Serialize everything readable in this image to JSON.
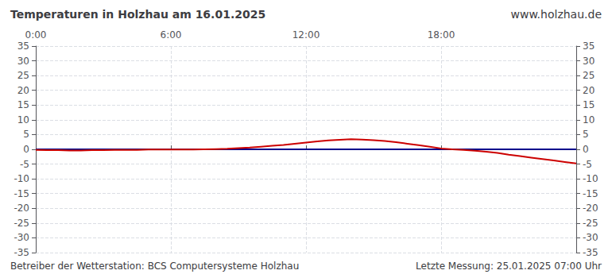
{
  "chart_data": {
    "type": "line",
    "title": "Temperaturen in Holzhau am 16.01.2025",
    "annotations": [
      "www.holzhau.de",
      "Betreiber der Wetterstation: BCS Computersysteme Holzhau",
      "Letzte Messung: 25.01.2025 07:00 Uhr"
    ],
    "xlim": [
      0,
      1440
    ],
    "xticks": [
      {
        "value": 0,
        "label": "0:00"
      },
      {
        "value": 360,
        "label": "6:00"
      },
      {
        "value": 720,
        "label": "12:00"
      },
      {
        "value": 1080,
        "label": "18:00"
      },
      {
        "value": 1440,
        "label": null
      }
    ],
    "ylim": [
      -35,
      35
    ],
    "yticks": [
      -35,
      -30,
      -25,
      -20,
      -15,
      -10,
      -5,
      0,
      5,
      10,
      15,
      20,
      25,
      30,
      35
    ],
    "y2lim": [
      -35,
      35
    ],
    "y2ticks": [
      -35,
      -30,
      -25,
      -20,
      -15,
      -10,
      -5,
      0,
      5,
      10,
      15,
      20,
      25,
      30,
      35
    ],
    "grid": true,
    "series": [
      {
        "color": "#00008b",
        "x": [
          0,
          1440
        ],
        "values": [
          0.0,
          0.0
        ]
      },
      {
        "color": "#cc0000",
        "x": [
          0,
          30,
          60,
          90,
          120,
          150,
          180,
          210,
          240,
          270,
          300,
          330,
          360,
          390,
          420,
          450,
          480,
          510,
          540,
          570,
          600,
          630,
          660,
          690,
          720,
          750,
          780,
          810,
          840,
          870,
          900,
          930,
          960,
          990,
          1020,
          1050,
          1080,
          1110,
          1140,
          1170,
          1200,
          1230,
          1260,
          1290,
          1320,
          1350,
          1380,
          1410,
          1440
        ],
        "values": [
          -0.2,
          -0.3,
          -0.3,
          -0.4,
          -0.4,
          -0.3,
          -0.3,
          -0.2,
          -0.2,
          -0.2,
          -0.1,
          -0.1,
          -0.1,
          -0.1,
          -0.1,
          0.0,
          0.1,
          0.2,
          0.4,
          0.6,
          0.9,
          1.2,
          1.5,
          1.9,
          2.3,
          2.7,
          3.0,
          3.2,
          3.4,
          3.3,
          3.1,
          2.8,
          2.4,
          1.9,
          1.4,
          0.9,
          0.3,
          0.0,
          -0.2,
          -0.5,
          -0.8,
          -1.2,
          -1.8,
          -2.3,
          -2.8,
          -3.3,
          -3.8,
          -4.3,
          -4.8
        ]
      }
    ]
  }
}
